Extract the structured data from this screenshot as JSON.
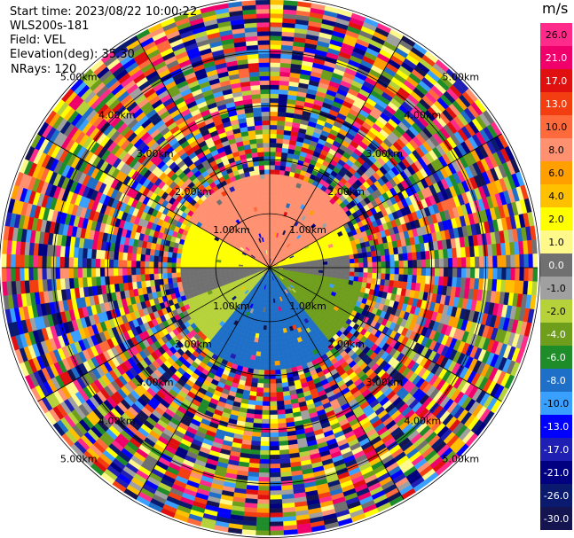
{
  "header": {
    "start_time": "Start time: 2023/08/22 10:00:22",
    "site": "WLS200s-181",
    "field": "Field: VEL",
    "elevation": "Elevation(deg): 35.30",
    "nrays": "NRays: 120"
  },
  "colorbar": {
    "unit": "m/s",
    "levels": [
      {
        "label": "26.0",
        "color": "#ff2b8a"
      },
      {
        "label": "21.0",
        "color": "#f0006b"
      },
      {
        "label": "17.0",
        "color": "#e01010"
      },
      {
        "label": "13.0",
        "color": "#f23e10"
      },
      {
        "label": "10.0",
        "color": "#ff6a3c"
      },
      {
        "label": "8.0",
        "color": "#ff9070"
      },
      {
        "label": "6.0",
        "color": "#ff9f00"
      },
      {
        "label": "4.0",
        "color": "#ffc000"
      },
      {
        "label": "2.0",
        "color": "#ffff00"
      },
      {
        "label": "1.0",
        "color": "#fff88a"
      },
      {
        "label": "0.0",
        "color": "#707070"
      },
      {
        "label": "-1.0",
        "color": "#a0a0a0"
      },
      {
        "label": "-2.0",
        "color": "#b5d23a"
      },
      {
        "label": "-4.0",
        "color": "#6e9e1c"
      },
      {
        "label": "-6.0",
        "color": "#1f8c2a"
      },
      {
        "label": "-8.0",
        "color": "#1e6fc8"
      },
      {
        "label": "-10.0",
        "color": "#3aa0ff"
      },
      {
        "label": "-13.0",
        "color": "#0000ff"
      },
      {
        "label": "-17.0",
        "color": "#1f1fb4"
      },
      {
        "label": "-21.0",
        "color": "#000080"
      },
      {
        "label": "-26.0",
        "color": "#0a1a6e"
      },
      {
        "label": "-30.0",
        "color": "#141450"
      }
    ]
  },
  "chart_data": {
    "type": "heatmap",
    "projection": "polar (PPI)",
    "field": "VEL",
    "nrays": 120,
    "range_ring_labels": [
      "1.00km",
      "2.00km",
      "3.00km",
      "4.00km",
      "5.00km"
    ],
    "velocity_pattern_by_azimuth_deg": [
      {
        "azimuth_from": 300,
        "azimuth_to": 60,
        "velocity_ms": 8.0,
        "max_valid_range_km": 2.5
      },
      {
        "azimuth_from": 60,
        "azimuth_to": 80,
        "velocity_ms": 2.0,
        "max_valid_range_km": 2.3
      },
      {
        "azimuth_from": 80,
        "azimuth_to": 100,
        "velocity_ms": 0.0,
        "max_valid_range_km": 2.2
      },
      {
        "azimuth_from": 100,
        "azimuth_to": 140,
        "velocity_ms": -4.0,
        "max_valid_range_km": 2.5
      },
      {
        "azimuth_from": 140,
        "azimuth_to": 220,
        "velocity_ms": -8.0,
        "max_valid_range_km": 2.7
      },
      {
        "azimuth_from": 220,
        "azimuth_to": 250,
        "velocity_ms": -2.0,
        "max_valid_range_km": 2.5
      },
      {
        "azimuth_from": 250,
        "azimuth_to": 270,
        "velocity_ms": 0.0,
        "max_valid_range_km": 2.4
      },
      {
        "azimuth_from": 270,
        "azimuth_to": 300,
        "velocity_ms": 2.0,
        "max_valid_range_km": 2.4
      }
    ],
    "beyond_valid_range": "noise (random velocities across full color scale)"
  }
}
